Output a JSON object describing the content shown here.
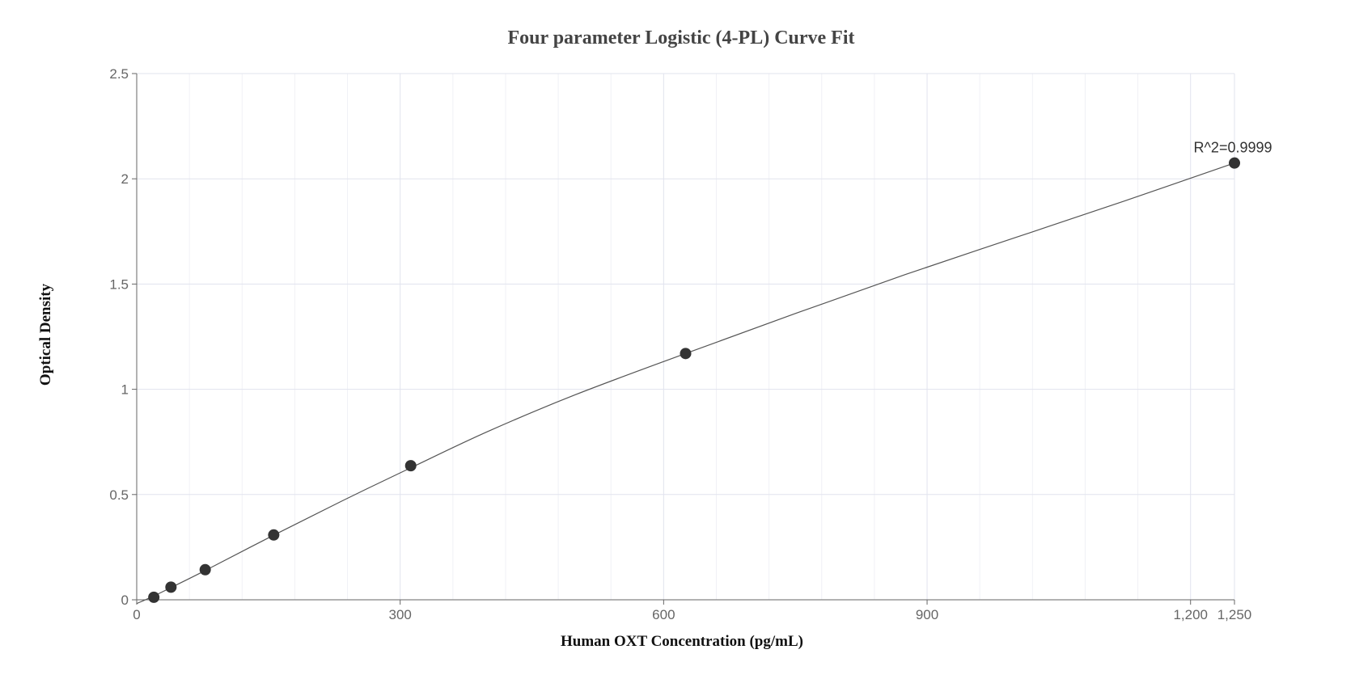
{
  "chart_data": {
    "type": "scatter",
    "title": "Four parameter Logistic (4-PL) Curve Fit",
    "xlabel": "Human OXT Concentration (pg/mL)",
    "ylabel": "Optical Density",
    "xlim": [
      0,
      1250
    ],
    "ylim": [
      0,
      2.5
    ],
    "x_ticks": [
      0,
      300,
      600,
      900,
      1200,
      1250
    ],
    "x_tick_labels": [
      "0",
      "300",
      "600",
      "900",
      "1,200",
      "1,250"
    ],
    "y_ticks": [
      0,
      0.5,
      1,
      1.5,
      2,
      2.5
    ],
    "y_tick_labels": [
      "0",
      "0.5",
      "1",
      "1.5",
      "2",
      "2.5"
    ],
    "x_minor_step": 60,
    "y_minor_step": 0.5,
    "grid": true,
    "series": [
      {
        "points": [
          {
            "x": 19.5,
            "y": 0.012
          },
          {
            "x": 39,
            "y": 0.06
          },
          {
            "x": 78,
            "y": 0.143
          },
          {
            "x": 156,
            "y": 0.308
          },
          {
            "x": 312,
            "y": 0.637
          },
          {
            "x": 625,
            "y": 1.17
          },
          {
            "x": 1250,
            "y": 2.075
          }
        ],
        "color": "#333333"
      }
    ],
    "fit_curve": {
      "color": "#555555",
      "points": [
        {
          "x": 0,
          "y": -0.018
        },
        {
          "x": 19.5,
          "y": 0.018
        },
        {
          "x": 39,
          "y": 0.058
        },
        {
          "x": 78,
          "y": 0.139
        },
        {
          "x": 156,
          "y": 0.307
        },
        {
          "x": 234,
          "y": 0.47
        },
        {
          "x": 312,
          "y": 0.627
        },
        {
          "x": 400,
          "y": 0.8
        },
        {
          "x": 500,
          "y": 0.975
        },
        {
          "x": 625,
          "y": 1.17
        },
        {
          "x": 750,
          "y": 1.36
        },
        {
          "x": 875,
          "y": 1.545
        },
        {
          "x": 1000,
          "y": 1.72
        },
        {
          "x": 1125,
          "y": 1.895
        },
        {
          "x": 1250,
          "y": 2.075
        }
      ]
    },
    "annotation": {
      "text": "R^2=0.9999",
      "x": 1250,
      "y": 2.075
    }
  }
}
